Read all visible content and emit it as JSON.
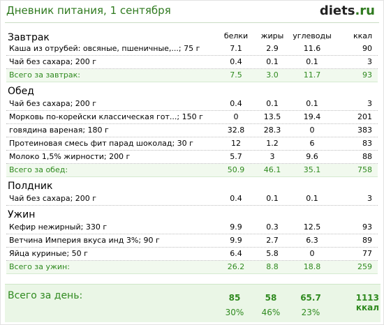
{
  "header": {
    "title": "Дневник питания, 1 сентября",
    "logo_main": "diets",
    "logo_suffix": ".ru"
  },
  "columns": {
    "protein": "белки",
    "fat": "жиры",
    "carbs": "углеводы",
    "kcal": "ккал"
  },
  "meals": [
    {
      "name": "Завтрак",
      "items": [
        {
          "name": "Каша из отрубей: овсяные, пшеничные,...; 75 г",
          "protein": "7.1",
          "fat": "2.9",
          "carbs": "11.6",
          "kcal": "90"
        },
        {
          "name": "Чай без сахара; 200 г",
          "protein": "0.4",
          "fat": "0.1",
          "carbs": "0.1",
          "kcal": "3"
        }
      ],
      "total": {
        "label": "Всего за завтрак:",
        "protein": "7.5",
        "fat": "3.0",
        "carbs": "11.7",
        "kcal": "93"
      }
    },
    {
      "name": "Обед",
      "items": [
        {
          "name": "Чай без сахара; 200 г",
          "protein": "0.4",
          "fat": "0.1",
          "carbs": "0.1",
          "kcal": "3"
        },
        {
          "name": "Морковь по-корейски классическая гот...; 150 г",
          "protein": "0",
          "fat": "13.5",
          "carbs": "19.4",
          "kcal": "201"
        },
        {
          "name": "говядина вареная; 180 г",
          "protein": "32.8",
          "fat": "28.3",
          "carbs": "0",
          "kcal": "383"
        },
        {
          "name": "Протеиновая смесь фит парад шоколад; 30 г",
          "protein": "12",
          "fat": "1.2",
          "carbs": "6",
          "kcal": "83"
        },
        {
          "name": "Молоко 1,5% жирности; 200 г",
          "protein": "5.7",
          "fat": "3",
          "carbs": "9.6",
          "kcal": "88"
        }
      ],
      "total": {
        "label": "Всего за обед:",
        "protein": "50.9",
        "fat": "46.1",
        "carbs": "35.1",
        "kcal": "758"
      }
    },
    {
      "name": "Полдник",
      "items": [
        {
          "name": "Чай без сахара; 200 г",
          "protein": "0.4",
          "fat": "0.1",
          "carbs": "0.1",
          "kcal": "3"
        }
      ]
    },
    {
      "name": "Ужин",
      "items": [
        {
          "name": "Кефир нежирный; 330 г",
          "protein": "9.9",
          "fat": "0.3",
          "carbs": "12.5",
          "kcal": "93"
        },
        {
          "name": "Ветчина Империя вкуса инд 3%; 90 г",
          "protein": "9.9",
          "fat": "2.7",
          "carbs": "6.3",
          "kcal": "89"
        },
        {
          "name": "Яйца куриные; 50 г",
          "protein": "6.4",
          "fat": "5.8",
          "carbs": "0",
          "kcal": "77"
        }
      ],
      "total": {
        "label": "Всего за ужин:",
        "protein": "26.2",
        "fat": "8.8",
        "carbs": "18.8",
        "kcal": "259"
      }
    }
  ],
  "day_total": {
    "label": "Всего за день:",
    "protein": "85",
    "fat": "58",
    "carbs": "65.7",
    "kcal": "1113 ккал",
    "protein_pct": "30%",
    "fat_pct": "46%",
    "carbs_pct": "23%"
  }
}
